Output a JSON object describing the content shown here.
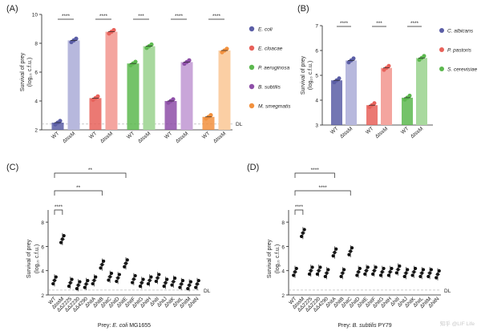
{
  "panels": {
    "A": {
      "label": "(A)",
      "ylabel1": "Survival of prey",
      "ylabel2": "(log₁₀ c.f.u.)",
      "yticks": [
        "2",
        "4",
        "6",
        "8",
        "10"
      ],
      "dl": "DL",
      "sig": [
        "****",
        "****",
        "***",
        "****",
        "****"
      ],
      "groups": [
        {
          "species": "E. coli",
          "color": "#5b5ea6",
          "light": "#b7b8dd",
          "cats": [
            "WT",
            "ΔtssM"
          ],
          "wt": 2.5,
          "mut": 8.2
        },
        {
          "species": "E. cloacae",
          "color": "#e8615a",
          "light": "#f4a59f",
          "cats": [
            "WT",
            "ΔtssM"
          ],
          "wt": 4.2,
          "mut": 8.8
        },
        {
          "species": "P. aeruginosa",
          "color": "#5cb84f",
          "light": "#a8d99e",
          "cats": [
            "WT",
            "ΔtssM"
          ],
          "wt": 6.6,
          "mut": 7.8
        },
        {
          "species": "B. subtilis",
          "color": "#8e4fa8",
          "light": "#c9a6d9",
          "cats": [
            "WT",
            "ΔtssM"
          ],
          "wt": 4.0,
          "mut": 6.7
        },
        {
          "species": "M. smegmatis",
          "color": "#f2913e",
          "light": "#fbcfa4",
          "cats": [
            "WT",
            "ΔtssM"
          ],
          "wt": 2.9,
          "mut": 7.5
        }
      ]
    },
    "B": {
      "label": "(B)",
      "ylabel1": "Survival of prey",
      "ylabel2": "(log₁₀ c.f.u.)",
      "yticks": [
        "3",
        "4",
        "5",
        "6",
        "7"
      ],
      "sig": [
        "****",
        "***",
        "****"
      ],
      "groups": [
        {
          "species": "C. albicans",
          "color": "#5b5ea6",
          "light": "#b7b8dd",
          "cats": [
            "WT",
            "ΔtssM"
          ],
          "wt": 4.8,
          "mut": 5.6
        },
        {
          "species": "P. pastoris",
          "color": "#e8615a",
          "light": "#f4a59f",
          "cats": [
            "WT",
            "ΔtssM"
          ],
          "wt": 3.8,
          "mut": 5.3
        },
        {
          "species": "S. cerevisiae",
          "color": "#5cb84f",
          "light": "#a8d99e",
          "cats": [
            "WT",
            "ΔtssM"
          ],
          "wt": 4.1,
          "mut": 5.7
        }
      ]
    },
    "C": {
      "label": "(C)",
      "ylabel1": "Survival of prey",
      "ylabel2": "(log₁₀ c.f.u.)",
      "yticks": [
        "2",
        "4",
        "6",
        "8"
      ],
      "dl": "DL",
      "prey_prefix": "Prey: ",
      "prey_species": "E. coli",
      "prey_strain": " MG1655",
      "sig": [
        "****",
        "**",
        "**"
      ],
      "cats": [
        "WT",
        "ΔtssM",
        "ΔΔ2225",
        "ΔΔ2230",
        "ΔΔ4290",
        "ΔhitA",
        "ΔhitB",
        "ΔhitC",
        "ΔhitD",
        "ΔhitE",
        "ΔhitF",
        "ΔhitG",
        "ΔhitH",
        "ΔhitI",
        "ΔhitJ",
        "ΔhitK",
        "ΔhitL",
        "ΔhitM",
        "ΔhitN"
      ],
      "values": [
        3.2,
        6.6,
        3.0,
        2.8,
        2.9,
        3.2,
        4.5,
        3.5,
        3.4,
        4.6,
        3.3,
        3.0,
        3.2,
        3.4,
        3.0,
        3.1,
        2.9,
        2.8,
        2.9
      ]
    },
    "D": {
      "label": "(D)",
      "ylabel1": "Survival of prey",
      "ylabel2": "(log₁₀ c.f.u.)",
      "yticks": [
        "2",
        "4",
        "6",
        "8"
      ],
      "dl": "DL",
      "prey_prefix": "Prey: ",
      "prey_species": "B. subtilis",
      "prey_strain": " PY79",
      "sig": [
        "****",
        "****",
        "****"
      ],
      "cats": [
        "WT",
        "ΔtssM",
        "ΔΔ2225",
        "ΔΔ2230",
        "ΔΔ4290",
        "ΔhitA",
        "ΔhitB",
        "ΔhitC",
        "ΔhitD",
        "ΔhitE",
        "ΔhitF",
        "ΔhitG",
        "ΔhitH",
        "ΔhitI",
        "ΔhitJ",
        "ΔhitK",
        "ΔhitL",
        "ΔhitM",
        "ΔhitN"
      ],
      "values": [
        3.9,
        7.1,
        4.0,
        4.0,
        3.8,
        5.5,
        3.8,
        5.6,
        3.9,
        4.0,
        4.0,
        3.9,
        3.9,
        4.1,
        3.8,
        3.9,
        3.8,
        3.8,
        3.7
      ]
    }
  },
  "watermark": "知乎 @LIF Life",
  "chart_data": [
    {
      "type": "bar",
      "title": "(A)",
      "ylabel": "Survival of prey (log10 c.f.u.)",
      "ylim": [
        2,
        10
      ],
      "categories": [
        "E. coli",
        "E. cloacae",
        "P. aeruginosa",
        "B. subtilis",
        "M. smegmatis"
      ],
      "series": [
        {
          "name": "WT",
          "values": [
            2.5,
            4.2,
            6.6,
            4.0,
            2.9
          ]
        },
        {
          "name": "ΔtssM",
          "values": [
            8.2,
            8.8,
            7.8,
            6.7,
            7.5
          ]
        }
      ],
      "detection_limit": 2.4
    },
    {
      "type": "bar",
      "title": "(B)",
      "ylabel": "Survival of prey (log10 c.f.u.)",
      "ylim": [
        3,
        7
      ],
      "categories": [
        "C. albicans",
        "P. pastoris",
        "S. cerevisiae"
      ],
      "series": [
        {
          "name": "WT",
          "values": [
            4.8,
            3.8,
            4.1
          ]
        },
        {
          "name": "ΔtssM",
          "values": [
            5.6,
            5.3,
            5.7
          ]
        }
      ]
    },
    {
      "type": "scatter",
      "title": "(C) Prey: E. coli MG1655",
      "ylabel": "Survival of prey (log10 c.f.u.)",
      "ylim": [
        2,
        9
      ],
      "x": [
        "WT",
        "ΔtssM",
        "ΔΔ2225",
        "ΔΔ2230",
        "ΔΔ4290",
        "ΔhitA",
        "ΔhitB",
        "ΔhitC",
        "ΔhitD",
        "ΔhitE",
        "ΔhitF",
        "ΔhitG",
        "ΔhitH",
        "ΔhitI",
        "ΔhitJ",
        "ΔhitK",
        "ΔhitL",
        "ΔhitM",
        "ΔhitN"
      ],
      "y": [
        3.2,
        6.6,
        3.0,
        2.8,
        2.9,
        3.2,
        4.5,
        3.5,
        3.4,
        4.6,
        3.3,
        3.0,
        3.2,
        3.4,
        3.0,
        3.1,
        2.9,
        2.8,
        2.9
      ],
      "detection_limit": 2.4
    },
    {
      "type": "scatter",
      "title": "(D) Prey: B. subtilis PY79",
      "ylabel": "Survival of prey (log10 c.f.u.)",
      "ylim": [
        2,
        9
      ],
      "x": [
        "WT",
        "ΔtssM",
        "ΔΔ2225",
        "ΔΔ2230",
        "ΔΔ4290",
        "ΔhitA",
        "ΔhitB",
        "ΔhitC",
        "ΔhitD",
        "ΔhitE",
        "ΔhitF",
        "ΔhitG",
        "ΔhitH",
        "ΔhitI",
        "ΔhitJ",
        "ΔhitK",
        "ΔhitL",
        "ΔhitM",
        "ΔhitN"
      ],
      "y": [
        3.9,
        7.1,
        4.0,
        4.0,
        3.8,
        5.5,
        3.8,
        5.6,
        3.9,
        4.0,
        4.0,
        3.9,
        3.9,
        4.1,
        3.8,
        3.9,
        3.8,
        3.8,
        3.7
      ],
      "detection_limit": 2.4
    }
  ]
}
